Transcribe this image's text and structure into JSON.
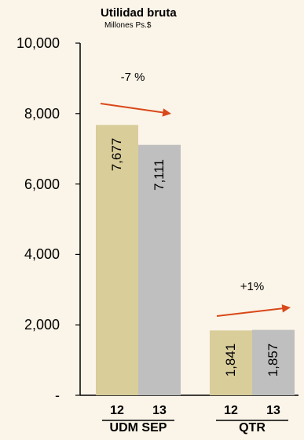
{
  "chart_data": {
    "type": "bar",
    "title": "Utilidad bruta",
    "subtitle": "Millones Ps.$",
    "ylim": [
      0,
      10000
    ],
    "yticks": [
      "-",
      "2,000",
      "4,000",
      "6,000",
      "8,000",
      "10,000"
    ],
    "yvalues": [
      0,
      2000,
      4000,
      6000,
      8000,
      10000
    ],
    "groups": [
      {
        "name": "UDM SEP",
        "bars": [
          {
            "year": "12",
            "value": 7677,
            "label": "7,677",
            "color": "#d9cd9a"
          },
          {
            "year": "13",
            "value": 7111,
            "label": "7,111",
            "color": "#bfbfbf"
          }
        ],
        "change": "-7 %"
      },
      {
        "name": "QTR",
        "bars": [
          {
            "year": "12",
            "value": 1841,
            "label": "1,841",
            "color": "#d9cd9a"
          },
          {
            "year": "13",
            "value": 1857,
            "label": "1,857",
            "color": "#bfbfbf"
          }
        ],
        "change": "+1%"
      }
    ],
    "arrow_color": "#d9481a",
    "grid": false
  }
}
